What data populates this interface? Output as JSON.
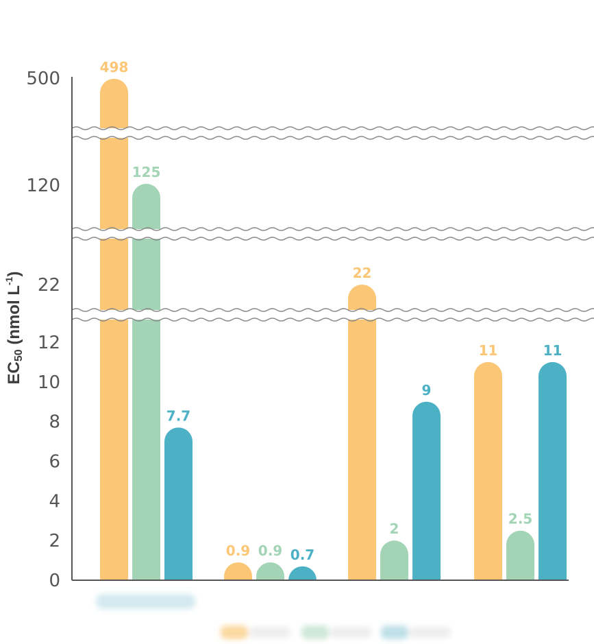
{
  "chart_data": {
    "type": "bar",
    "ylabel": {
      "prefix": "EC",
      "subscript": "50",
      "unit_open": " (nmol L",
      "superscript": "-1",
      "unit_close": ")"
    },
    "y_ticks": [
      "0",
      "2",
      "4",
      "6",
      "8",
      "10",
      "12",
      "22",
      "120",
      "500"
    ],
    "y_axis_breaks": true,
    "categories": [
      "",
      "",
      "",
      ""
    ],
    "series": [
      {
        "color": "#FBC676",
        "values": [
          498,
          0.9,
          22,
          11
        ],
        "labels": [
          "498",
          "0.9",
          "22",
          "11"
        ]
      },
      {
        "color": "#A3D4B5",
        "values": [
          125,
          0.9,
          2,
          2.5
        ],
        "labels": [
          "125",
          "0.9",
          "2",
          "2.5"
        ]
      },
      {
        "color": "#4DB1C5",
        "values": [
          7.7,
          0.7,
          9,
          11
        ],
        "labels": [
          "7.7",
          "0.7",
          "9",
          "11"
        ]
      }
    ],
    "grid": false,
    "legend": "bottom"
  }
}
